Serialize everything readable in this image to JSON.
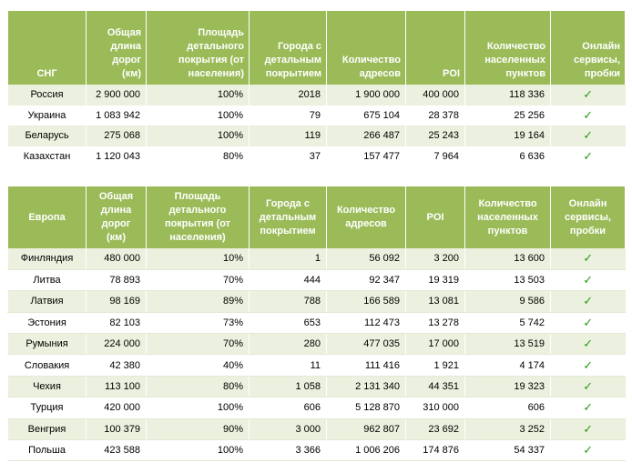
{
  "tables": [
    {
      "header": [
        "СНГ",
        "Общая длина дорог (км)",
        "Площадь детального покрытия (от населения)",
        "Города с детальным покрытием",
        "Количество адресов",
        "POI",
        "Количество населенных пунктов",
        "Онлайн сервисы, пробки"
      ],
      "rows": [
        [
          "Россия",
          "2 900 000",
          "100%",
          "2018",
          "1 900 000",
          "400 000",
          "118 336",
          "✓"
        ],
        [
          "Украина",
          "1 083 942",
          "100%",
          "79",
          "675 104",
          "28 378",
          "25 256",
          "✓"
        ],
        [
          "Беларусь",
          "275 068",
          "100%",
          "119",
          "266 487",
          "25 243",
          "19 164",
          "✓"
        ],
        [
          "Казахстан",
          "1 120 043",
          "80%",
          "37",
          "157 477",
          "7 964",
          "6 636",
          "✓"
        ]
      ]
    },
    {
      "header": [
        "Европа",
        "Общая длина дорог (км)",
        "Площадь детального покрытия (от населения)",
        "Города с детальным покрытием",
        "Количество адресов",
        "POI",
        "Количество населенных пунктов",
        "Онлайн сервисы, пробки"
      ],
      "rows": [
        [
          "Финляндия",
          "480 000",
          "10%",
          "1",
          "56 092",
          "3 200",
          "13 600",
          "✓"
        ],
        [
          "Литва",
          "78 893",
          "70%",
          "444",
          "92 347",
          "19 319",
          "13 503",
          "✓"
        ],
        [
          "Латвия",
          "98 169",
          "89%",
          "788",
          "166 589",
          "13 081",
          "9 586",
          "✓"
        ],
        [
          "Эстония",
          "82 103",
          "73%",
          "653",
          "112 473",
          "13 278",
          "5 742",
          "✓"
        ],
        [
          "Румыния",
          "224 000",
          "70%",
          "280",
          "477 035",
          "17 000",
          "13 519",
          "✓"
        ],
        [
          "Словакия",
          "42 380",
          "40%",
          "11",
          "111 416",
          "1 921",
          "4 174",
          "✓"
        ],
        [
          "Чехия",
          "113 100",
          "80%",
          "1 058",
          "2 131 340",
          "44 351",
          "19 323",
          "✓"
        ],
        [
          "Турция",
          "420 000",
          "100%",
          "606",
          "5 128 870",
          "310 000",
          "606",
          "✓"
        ],
        [
          "Венгрия",
          "100 379",
          "90%",
          "3 000",
          "962 807",
          "23 692",
          "3 252",
          "✓"
        ],
        [
          "Польша",
          "423 588",
          "100%",
          "3 366",
          "1 006 206",
          "174 876",
          "54 337",
          "✓"
        ]
      ]
    }
  ]
}
